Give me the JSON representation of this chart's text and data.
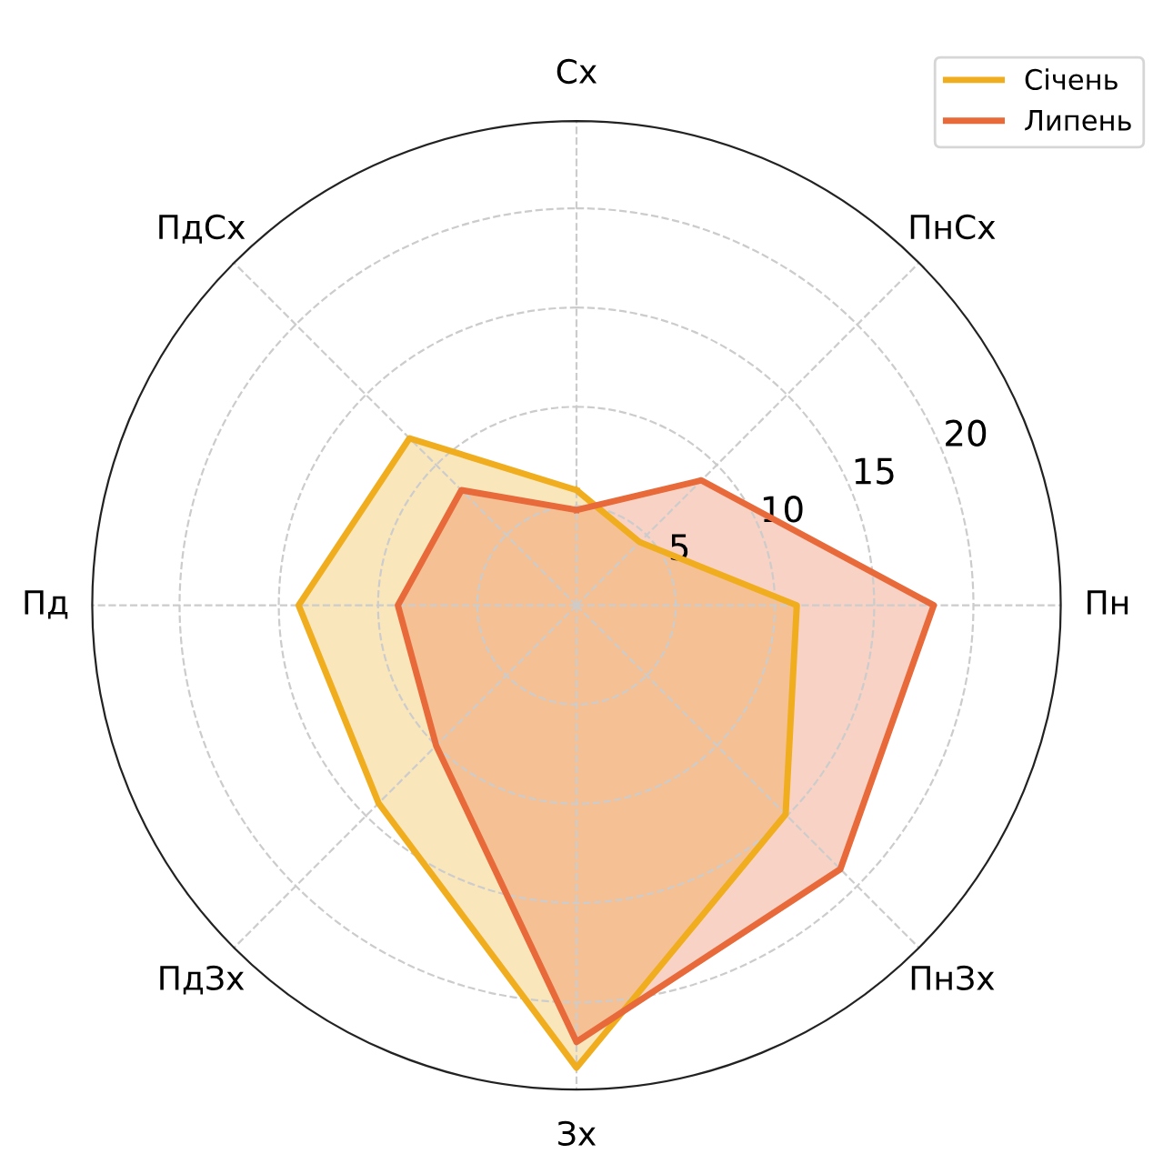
{
  "chart_data": {
    "type": "radar",
    "categories": [
      "Сх",
      "ПнСх",
      "Пн",
      "ПнЗх",
      "Зх",
      "ПдЗх",
      "Пд",
      "ПдСх"
    ],
    "series": [
      {
        "name": "Січень",
        "color": "#f0ad1e",
        "values": [
          5.8,
          4.5,
          11.1,
          14.9,
          23.3,
          14.1,
          14.0,
          11.9
        ]
      },
      {
        "name": "Липень",
        "color": "#e8693a",
        "values": [
          4.8,
          8.9,
          18.0,
          18.8,
          22.0,
          10.0,
          9.0,
          8.2
        ]
      }
    ],
    "ylim": [
      0,
      24.4
    ],
    "yticks": [
      5,
      10,
      15,
      20
    ],
    "grid": true,
    "legend": "top right",
    "line_style": "solid"
  }
}
